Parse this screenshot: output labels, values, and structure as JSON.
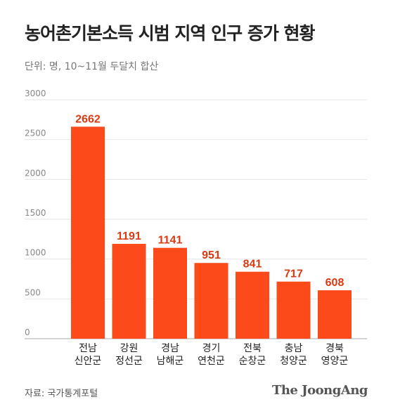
{
  "title": "농어촌기본소득 시범 지역 인구 증가 현황",
  "subtitle": "단위: 명, 10~11월 두달치 합산",
  "source": "자료: 국가통계포털",
  "brand": "The JoongAng",
  "colors": {
    "bar": "#fc4a1a",
    "value_label": "#d93a12",
    "grid": "#e6e6e6",
    "axis": "#888888"
  },
  "chart_data": {
    "type": "bar",
    "categories": [
      [
        "전남",
        "신안군"
      ],
      [
        "강원",
        "정선군"
      ],
      [
        "경남",
        "남해군"
      ],
      [
        "경기",
        "연천군"
      ],
      [
        "전북",
        "순창군"
      ],
      [
        "충남",
        "청양군"
      ],
      [
        "경북",
        "영양군"
      ]
    ],
    "values": [
      2662,
      1191,
      1141,
      951,
      841,
      717,
      608
    ],
    "ylim": [
      0,
      3000
    ],
    "yticks": [
      0,
      500,
      1000,
      1500,
      2000,
      2500,
      3000
    ],
    "grid": true,
    "legend": "none"
  }
}
